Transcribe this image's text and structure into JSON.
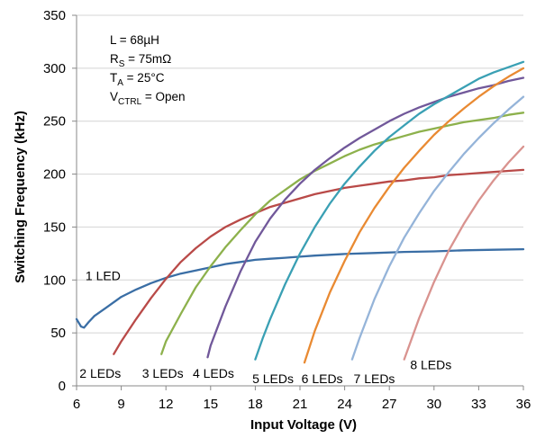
{
  "chart_data": {
    "type": "line",
    "xlabel": "Input Voltage (V)",
    "ylabel": "Switching Frequency (kHz)",
    "xlim": [
      6,
      36
    ],
    "ylim": [
      0,
      350
    ],
    "xticks": [
      "6",
      "9",
      "12",
      "15",
      "18",
      "21",
      "24",
      "27",
      "30",
      "33",
      "36"
    ],
    "yticks": [
      "0",
      "50",
      "100",
      "150",
      "200",
      "250",
      "300",
      "350"
    ],
    "grid": "horizontal",
    "conditions": [
      {
        "main": "L = 68µH",
        "sub": "",
        "tail": ""
      },
      {
        "main": "R",
        "sub": "S",
        "tail": " = 75mΩ"
      },
      {
        "main": "T",
        "sub": "A",
        "tail": " = 25°C"
      },
      {
        "main": "V",
        "sub": "CTRL",
        "tail": " = Open"
      }
    ],
    "series": [
      {
        "name": "1 LED",
        "color": "#3a6ea5",
        "x": [
          6.0,
          6.3,
          6.5,
          6.8,
          7.2,
          8.0,
          9.0,
          10.0,
          11.0,
          12.0,
          13.0,
          14.0,
          15.0,
          16.0,
          17.0,
          18.0,
          19.0,
          20.0,
          21.0,
          22.0,
          24.0,
          26.0,
          28.0,
          30.0,
          32.0,
          34.0,
          36.0
        ],
        "y": [
          63,
          56,
          55,
          60,
          66,
          74,
          84,
          91,
          97,
          102,
          106,
          109,
          112,
          115,
          117,
          119,
          120,
          121,
          122,
          123,
          124.5,
          125.5,
          126.5,
          127,
          128,
          128.5,
          129
        ]
      },
      {
        "name": "2 LEDs",
        "color": "#b94a48",
        "x": [
          8.5,
          9.0,
          10.0,
          11.0,
          12.0,
          13.0,
          14.0,
          15.0,
          16.0,
          17.0,
          18.0,
          19.0,
          20.0,
          21.0,
          22.0,
          23.0,
          24.0,
          25.0,
          26.0,
          27.0,
          28.0,
          29.0,
          30.0,
          31.0,
          32.0,
          33.0,
          34.0,
          35.0,
          36.0
        ],
        "y": [
          30,
          42,
          63,
          83,
          101,
          117,
          130,
          141,
          150,
          157,
          163,
          169,
          173,
          177,
          181,
          184,
          187,
          189,
          191,
          193,
          194,
          196,
          197,
          199,
          200,
          201,
          202,
          203,
          204
        ]
      },
      {
        "name": "3 LEDs",
        "color": "#8db14c",
        "x": [
          11.7,
          12.0,
          13.0,
          14.0,
          15.0,
          16.0,
          17.0,
          18.0,
          19.0,
          20.0,
          21.0,
          22.0,
          23.0,
          24.0,
          25.0,
          26.0,
          27.0,
          28.0,
          29.0,
          30.0,
          31.0,
          32.0,
          33.0,
          34.0,
          35.0,
          36.0
        ],
        "y": [
          30,
          42,
          68,
          93,
          113,
          131,
          147,
          162,
          175,
          185,
          195,
          203,
          210,
          217,
          223,
          228,
          232,
          236,
          240,
          243,
          246,
          249,
          251,
          253,
          256,
          258
        ]
      },
      {
        "name": "4 LEDs",
        "color": "#71589a",
        "x": [
          14.8,
          15.0,
          16.0,
          17.0,
          18.0,
          19.0,
          20.0,
          21.0,
          22.0,
          23.0,
          24.0,
          25.0,
          26.0,
          27.0,
          28.0,
          29.0,
          30.0,
          31.0,
          32.0,
          33.0,
          34.0,
          35.0,
          36.0
        ],
        "y": [
          27,
          38,
          75,
          108,
          136,
          158,
          176,
          191,
          204,
          215,
          225,
          234,
          242,
          250,
          257,
          263,
          268,
          273,
          277,
          281,
          284,
          288,
          291
        ]
      },
      {
        "name": "5 LEDs",
        "color": "#3aa0b4",
        "x": [
          18.0,
          18.5,
          19.0,
          20.0,
          21.0,
          22.0,
          23.0,
          24.0,
          25.0,
          26.0,
          27.0,
          28.0,
          29.0,
          30.0,
          31.0,
          32.0,
          33.0,
          34.0,
          35.0,
          36.0
        ],
        "y": [
          25,
          45,
          63,
          96,
          125,
          150,
          172,
          191,
          207,
          222,
          235,
          246,
          257,
          266,
          274,
          282,
          290,
          296,
          301,
          306
        ]
      },
      {
        "name": "6 LEDs",
        "color": "#e98a32",
        "x": [
          21.3,
          22.0,
          23.0,
          24.0,
          25.0,
          26.0,
          27.0,
          28.0,
          29.0,
          30.0,
          31.0,
          32.0,
          33.0,
          34.0,
          35.0,
          36.0
        ],
        "y": [
          22,
          52,
          88,
          118,
          145,
          168,
          188,
          206,
          222,
          237,
          250,
          262,
          273,
          283,
          292,
          300
        ]
      },
      {
        "name": "7 LEDs",
        "color": "#95b4d9",
        "x": [
          24.5,
          25.0,
          26.0,
          27.0,
          28.0,
          29.0,
          30.0,
          31.0,
          32.0,
          33.0,
          34.0,
          35.0,
          36.0
        ],
        "y": [
          25,
          45,
          82,
          113,
          140,
          163,
          184,
          202,
          219,
          234,
          248,
          261,
          273
        ]
      },
      {
        "name": "8 LEDs",
        "color": "#d9938f",
        "x": [
          28.0,
          29.0,
          30.0,
          31.0,
          32.0,
          33.0,
          34.0,
          35.0,
          36.0
        ],
        "y": [
          25,
          64,
          98,
          128,
          153,
          175,
          194,
          211,
          226
        ]
      }
    ],
    "series_labels": [
      {
        "text": "1 LED",
        "x": 6.6,
        "y": 104
      },
      {
        "text": "2 LEDs",
        "x": 6.2,
        "y": 12
      },
      {
        "text": "3 LEDs",
        "x": 10.4,
        "y": 12
      },
      {
        "text": "4 LEDs",
        "x": 13.8,
        "y": 12
      },
      {
        "text": "5 LEDs",
        "x": 17.8,
        "y": 7
      },
      {
        "text": "6 LEDs",
        "x": 21.1,
        "y": 7
      },
      {
        "text": "7 LEDs",
        "x": 24.6,
        "y": 7
      },
      {
        "text": "8 LEDs",
        "x": 28.4,
        "y": 20
      }
    ]
  }
}
